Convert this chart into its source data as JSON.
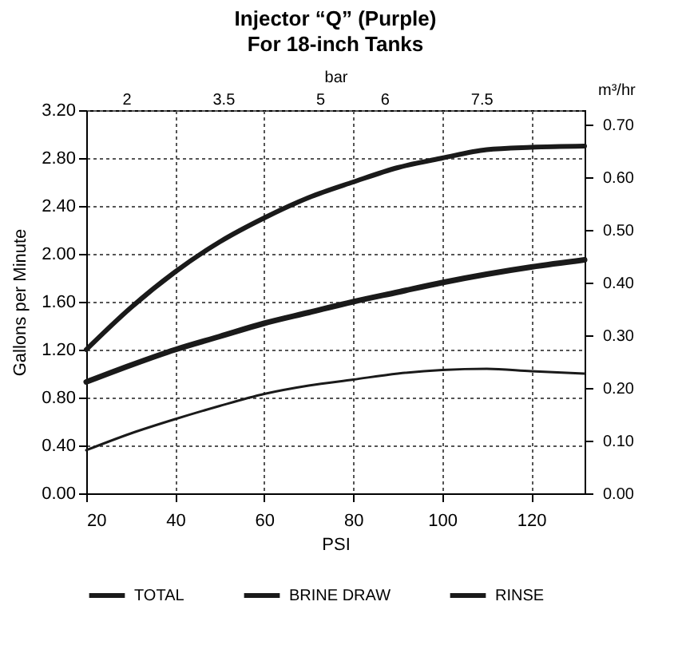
{
  "chart_data": {
    "type": "line",
    "title": "Injector “Q” (Purple)",
    "subtitle": "For 18-inch Tanks",
    "xlabel": "PSI",
    "ylabel": "Gallons per Minute",
    "y2label": "m³/hr",
    "x2label": "bar",
    "xlim": [
      20,
      132
    ],
    "xticks": [
      20,
      40,
      60,
      80,
      100,
      120
    ],
    "ylim": [
      0,
      3.2
    ],
    "yticks": [
      {
        "value": 0,
        "label": "0.00"
      },
      {
        "value": 0.4,
        "label": "0.40"
      },
      {
        "value": 0.8,
        "label": "0.80"
      },
      {
        "value": 1.2,
        "label": "1.20"
      },
      {
        "value": 1.6,
        "label": "1.60"
      },
      {
        "value": 2.0,
        "label": "2.00"
      },
      {
        "value": 2.4,
        "label": "2.40"
      },
      {
        "value": 2.8,
        "label": "2.80"
      },
      {
        "value": 3.2,
        "label": "3.20"
      }
    ],
    "y2lim": [
      0,
      0.727
    ],
    "y2ticks": [
      {
        "value": 0,
        "label": "0.00"
      },
      {
        "value": 0.1,
        "label": "0.10"
      },
      {
        "value": 0.2,
        "label": "0.20"
      },
      {
        "value": 0.3,
        "label": "0.30"
      },
      {
        "value": 0.4,
        "label": "0.40"
      },
      {
        "value": 0.5,
        "label": "0.50"
      },
      {
        "value": 0.6,
        "label": "0.60"
      },
      {
        "value": 0.7,
        "label": "0.70"
      }
    ],
    "x2lim": [
      1.38,
      9.1
    ],
    "x2ticks": [
      2,
      3.5,
      5,
      6,
      7.5
    ],
    "x": [
      20,
      30,
      40,
      50,
      60,
      70,
      80,
      90,
      100,
      110,
      120,
      132
    ],
    "series": [
      {
        "name": "TOTAL",
        "color": "#1a1a1a",
        "values": [
          1.2,
          1.55,
          1.85,
          2.1,
          2.3,
          2.47,
          2.6,
          2.72,
          2.8,
          2.87,
          2.89,
          2.9
        ]
      },
      {
        "name": "BRINE DRAW",
        "color": "#1a1a1a",
        "values": [
          0.36,
          0.5,
          0.62,
          0.73,
          0.83,
          0.9,
          0.95,
          1.0,
          1.03,
          1.04,
          1.02,
          1.0
        ]
      },
      {
        "name": "RINSE",
        "color": "#1a1a1a",
        "values": [
          0.93,
          1.07,
          1.2,
          1.31,
          1.42,
          1.51,
          1.6,
          1.68,
          1.76,
          1.83,
          1.89,
          1.95
        ]
      }
    ],
    "grid": true,
    "legend": "bottom",
    "marker": "none",
    "line_style": "solid"
  }
}
